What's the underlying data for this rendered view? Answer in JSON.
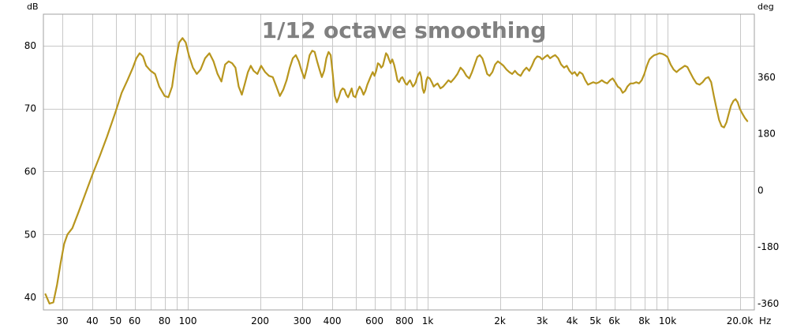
{
  "chart_data": {
    "type": "line",
    "title": "1/12 octave smoothing",
    "y_left_unit": "dB",
    "y_right_unit": "deg",
    "x_unit": "Hz",
    "x_scale": "log",
    "xlim": [
      25,
      23000
    ],
    "ylim": [
      38,
      85
    ],
    "y2lim": [
      -380,
      560
    ],
    "grid": true,
    "colors": {
      "line": "#b8961e",
      "grid": "#c8c8c8",
      "frame": "#a0a0a0"
    },
    "y_ticks": [
      {
        "value": 40,
        "label": "40"
      },
      {
        "value": 50,
        "label": "50"
      },
      {
        "value": 60,
        "label": "60"
      },
      {
        "value": 70,
        "label": "70"
      },
      {
        "value": 80,
        "label": "80"
      }
    ],
    "y2_ticks": [
      {
        "value": -360,
        "label": "-360"
      },
      {
        "value": -180,
        "label": "-180"
      },
      {
        "value": 0,
        "label": "0"
      },
      {
        "value": 180,
        "label": "180"
      },
      {
        "value": 360,
        "label": "360"
      }
    ],
    "x_ticks": [
      {
        "value": 30,
        "label": "30"
      },
      {
        "value": 40,
        "label": "40"
      },
      {
        "value": 50,
        "label": "50"
      },
      {
        "value": 60,
        "label": "60"
      },
      {
        "value": 80,
        "label": "80"
      },
      {
        "value": 100,
        "label": "100"
      },
      {
        "value": 200,
        "label": "200"
      },
      {
        "value": 300,
        "label": "300"
      },
      {
        "value": 400,
        "label": "400"
      },
      {
        "value": 600,
        "label": "600"
      },
      {
        "value": 800,
        "label": "800"
      },
      {
        "value": 1000,
        "label": "1k"
      },
      {
        "value": 2000,
        "label": "2k"
      },
      {
        "value": 3000,
        "label": "3k"
      },
      {
        "value": 4000,
        "label": "4k"
      },
      {
        "value": 5000,
        "label": "5k"
      },
      {
        "value": 6000,
        "label": "6k"
      },
      {
        "value": 8000,
        "label": "8k"
      },
      {
        "value": 10000,
        "label": "10k"
      },
      {
        "value": 20000,
        "label": "20.0k"
      }
    ],
    "x_grid": [
      30,
      40,
      50,
      60,
      70,
      80,
      90,
      100,
      200,
      300,
      400,
      500,
      600,
      700,
      800,
      900,
      1000,
      2000,
      3000,
      4000,
      5000,
      6000,
      7000,
      8000,
      9000,
      10000,
      20000
    ],
    "series": [
      {
        "points": [
          [
            25.5,
            40.5
          ],
          [
            26.5,
            39.0
          ],
          [
            27.5,
            39.2
          ],
          [
            28.5,
            42.0
          ],
          [
            29.5,
            45.5
          ],
          [
            30.5,
            48.5
          ],
          [
            31.5,
            50.0
          ],
          [
            33,
            51.0
          ],
          [
            35,
            53.5
          ],
          [
            37,
            56.0
          ],
          [
            40,
            59.5
          ],
          [
            43,
            62.5
          ],
          [
            46,
            65.5
          ],
          [
            50,
            69.5
          ],
          [
            53,
            72.5
          ],
          [
            56,
            74.5
          ],
          [
            59,
            76.5
          ],
          [
            61,
            78.0
          ],
          [
            63,
            78.8
          ],
          [
            65,
            78.3
          ],
          [
            67,
            76.8
          ],
          [
            70,
            76.0
          ],
          [
            73,
            75.5
          ],
          [
            76,
            73.5
          ],
          [
            80,
            72.0
          ],
          [
            83,
            71.8
          ],
          [
            86,
            73.5
          ],
          [
            89,
            77.5
          ],
          [
            92,
            80.5
          ],
          [
            95,
            81.2
          ],
          [
            98,
            80.5
          ],
          [
            101,
            78.5
          ],
          [
            105,
            76.5
          ],
          [
            109,
            75.5
          ],
          [
            113,
            76.2
          ],
          [
            118,
            78.0
          ],
          [
            123,
            78.8
          ],
          [
            128,
            77.5
          ],
          [
            133,
            75.5
          ],
          [
            138,
            74.3
          ],
          [
            143,
            77.0
          ],
          [
            148,
            77.5
          ],
          [
            153,
            77.2
          ],
          [
            158,
            76.5
          ],
          [
            163,
            73.5
          ],
          [
            168,
            72.2
          ],
          [
            173,
            74.0
          ],
          [
            178,
            75.8
          ],
          [
            183,
            76.8
          ],
          [
            188,
            76.0
          ],
          [
            195,
            75.5
          ],
          [
            202,
            76.8
          ],
          [
            210,
            75.8
          ],
          [
            218,
            75.2
          ],
          [
            226,
            75.0
          ],
          [
            234,
            73.5
          ],
          [
            242,
            72.0
          ],
          [
            250,
            73.0
          ],
          [
            258,
            74.5
          ],
          [
            266,
            76.5
          ],
          [
            274,
            78.0
          ],
          [
            282,
            78.5
          ],
          [
            290,
            77.5
          ],
          [
            298,
            76.0
          ],
          [
            306,
            74.8
          ],
          [
            314,
            76.5
          ],
          [
            322,
            78.5
          ],
          [
            330,
            79.2
          ],
          [
            338,
            79.0
          ],
          [
            346,
            77.5
          ],
          [
            354,
            76.2
          ],
          [
            362,
            75.0
          ],
          [
            370,
            76.0
          ],
          [
            378,
            78.0
          ],
          [
            386,
            79.0
          ],
          [
            394,
            78.5
          ],
          [
            402,
            75.5
          ],
          [
            410,
            72.0
          ],
          [
            418,
            71.0
          ],
          [
            426,
            71.8
          ],
          [
            434,
            72.8
          ],
          [
            442,
            73.2
          ],
          [
            450,
            73.0
          ],
          [
            458,
            72.2
          ],
          [
            466,
            71.8
          ],
          [
            474,
            72.5
          ],
          [
            482,
            73.2
          ],
          [
            490,
            72.0
          ],
          [
            500,
            71.8
          ],
          [
            510,
            72.8
          ],
          [
            520,
            73.5
          ],
          [
            530,
            73.0
          ],
          [
            540,
            72.2
          ],
          [
            550,
            72.8
          ],
          [
            560,
            73.8
          ],
          [
            570,
            74.5
          ],
          [
            580,
            75.2
          ],
          [
            590,
            75.8
          ],
          [
            600,
            75.2
          ],
          [
            610,
            76.0
          ],
          [
            620,
            77.2
          ],
          [
            630,
            77.0
          ],
          [
            640,
            76.5
          ],
          [
            650,
            76.8
          ],
          [
            660,
            77.8
          ],
          [
            670,
            78.8
          ],
          [
            680,
            78.5
          ],
          [
            690,
            77.8
          ],
          [
            700,
            77.2
          ],
          [
            712,
            77.8
          ],
          [
            724,
            77.0
          ],
          [
            736,
            75.8
          ],
          [
            748,
            74.5
          ],
          [
            760,
            74.2
          ],
          [
            772,
            74.8
          ],
          [
            784,
            75.0
          ],
          [
            796,
            74.5
          ],
          [
            808,
            74.0
          ],
          [
            820,
            73.8
          ],
          [
            832,
            74.2
          ],
          [
            844,
            74.5
          ],
          [
            856,
            74.0
          ],
          [
            868,
            73.5
          ],
          [
            880,
            73.8
          ],
          [
            892,
            74.2
          ],
          [
            904,
            75.0
          ],
          [
            916,
            75.5
          ],
          [
            928,
            75.8
          ],
          [
            940,
            75.0
          ],
          [
            952,
            73.2
          ],
          [
            964,
            72.5
          ],
          [
            976,
            73.0
          ],
          [
            988,
            74.5
          ],
          [
            1000,
            75.0
          ],
          [
            1020,
            74.8
          ],
          [
            1040,
            74.2
          ],
          [
            1060,
            73.5
          ],
          [
            1080,
            73.8
          ],
          [
            1100,
            74.0
          ],
          [
            1130,
            73.2
          ],
          [
            1160,
            73.5
          ],
          [
            1190,
            74.0
          ],
          [
            1220,
            74.5
          ],
          [
            1250,
            74.2
          ],
          [
            1290,
            74.8
          ],
          [
            1330,
            75.5
          ],
          [
            1370,
            76.5
          ],
          [
            1410,
            76.0
          ],
          [
            1450,
            75.2
          ],
          [
            1490,
            74.8
          ],
          [
            1530,
            75.8
          ],
          [
            1570,
            77.0
          ],
          [
            1610,
            78.2
          ],
          [
            1650,
            78.5
          ],
          [
            1690,
            78.0
          ],
          [
            1730,
            76.8
          ],
          [
            1770,
            75.5
          ],
          [
            1810,
            75.2
          ],
          [
            1860,
            75.8
          ],
          [
            1910,
            77.0
          ],
          [
            1960,
            77.5
          ],
          [
            2010,
            77.2
          ],
          [
            2070,
            76.8
          ],
          [
            2130,
            76.2
          ],
          [
            2190,
            75.8
          ],
          [
            2250,
            75.5
          ],
          [
            2310,
            76.0
          ],
          [
            2370,
            75.5
          ],
          [
            2440,
            75.2
          ],
          [
            2510,
            76.0
          ],
          [
            2580,
            76.5
          ],
          [
            2650,
            76.0
          ],
          [
            2720,
            76.8
          ],
          [
            2790,
            77.8
          ],
          [
            2860,
            78.3
          ],
          [
            2930,
            78.2
          ],
          [
            3000,
            77.8
          ],
          [
            3080,
            78.2
          ],
          [
            3160,
            78.5
          ],
          [
            3240,
            78.0
          ],
          [
            3320,
            78.3
          ],
          [
            3400,
            78.5
          ],
          [
            3500,
            78.0
          ],
          [
            3600,
            77.0
          ],
          [
            3700,
            76.5
          ],
          [
            3800,
            76.8
          ],
          [
            3900,
            76.0
          ],
          [
            4000,
            75.5
          ],
          [
            4100,
            75.8
          ],
          [
            4200,
            75.2
          ],
          [
            4300,
            75.8
          ],
          [
            4420,
            75.5
          ],
          [
            4540,
            74.5
          ],
          [
            4660,
            73.8
          ],
          [
            4780,
            74.0
          ],
          [
            4900,
            74.2
          ],
          [
            5040,
            74.0
          ],
          [
            5180,
            74.2
          ],
          [
            5320,
            74.5
          ],
          [
            5460,
            74.2
          ],
          [
            5600,
            74.0
          ],
          [
            5750,
            74.5
          ],
          [
            5900,
            74.8
          ],
          [
            6050,
            74.2
          ],
          [
            6200,
            73.5
          ],
          [
            6350,
            73.2
          ],
          [
            6500,
            72.5
          ],
          [
            6650,
            72.8
          ],
          [
            6800,
            73.5
          ],
          [
            7000,
            74.0
          ],
          [
            7200,
            74.0
          ],
          [
            7400,
            74.2
          ],
          [
            7600,
            74.0
          ],
          [
            7800,
            74.5
          ],
          [
            8000,
            75.5
          ],
          [
            8200,
            76.8
          ],
          [
            8400,
            77.8
          ],
          [
            8600,
            78.2
          ],
          [
            8800,
            78.5
          ],
          [
            9000,
            78.6
          ],
          [
            9250,
            78.8
          ],
          [
            9500,
            78.7
          ],
          [
            9750,
            78.5
          ],
          [
            10000,
            78.2
          ],
          [
            10300,
            77.0
          ],
          [
            10600,
            76.2
          ],
          [
            10900,
            75.8
          ],
          [
            11200,
            76.2
          ],
          [
            11500,
            76.5
          ],
          [
            11800,
            76.8
          ],
          [
            12100,
            76.6
          ],
          [
            12400,
            75.8
          ],
          [
            12800,
            74.8
          ],
          [
            13200,
            74.0
          ],
          [
            13600,
            73.8
          ],
          [
            14000,
            74.2
          ],
          [
            14400,
            74.8
          ],
          [
            14800,
            75.0
          ],
          [
            15200,
            74.2
          ],
          [
            15600,
            72.0
          ],
          [
            16000,
            70.0
          ],
          [
            16400,
            68.2
          ],
          [
            16800,
            67.2
          ],
          [
            17200,
            67.0
          ],
          [
            17600,
            67.8
          ],
          [
            18000,
            69.2
          ],
          [
            18400,
            70.5
          ],
          [
            18800,
            71.2
          ],
          [
            19200,
            71.5
          ],
          [
            19600,
            71.0
          ],
          [
            20000,
            70.0
          ],
          [
            20500,
            69.2
          ],
          [
            21000,
            68.5
          ],
          [
            21500,
            68.0
          ]
        ]
      }
    ]
  }
}
